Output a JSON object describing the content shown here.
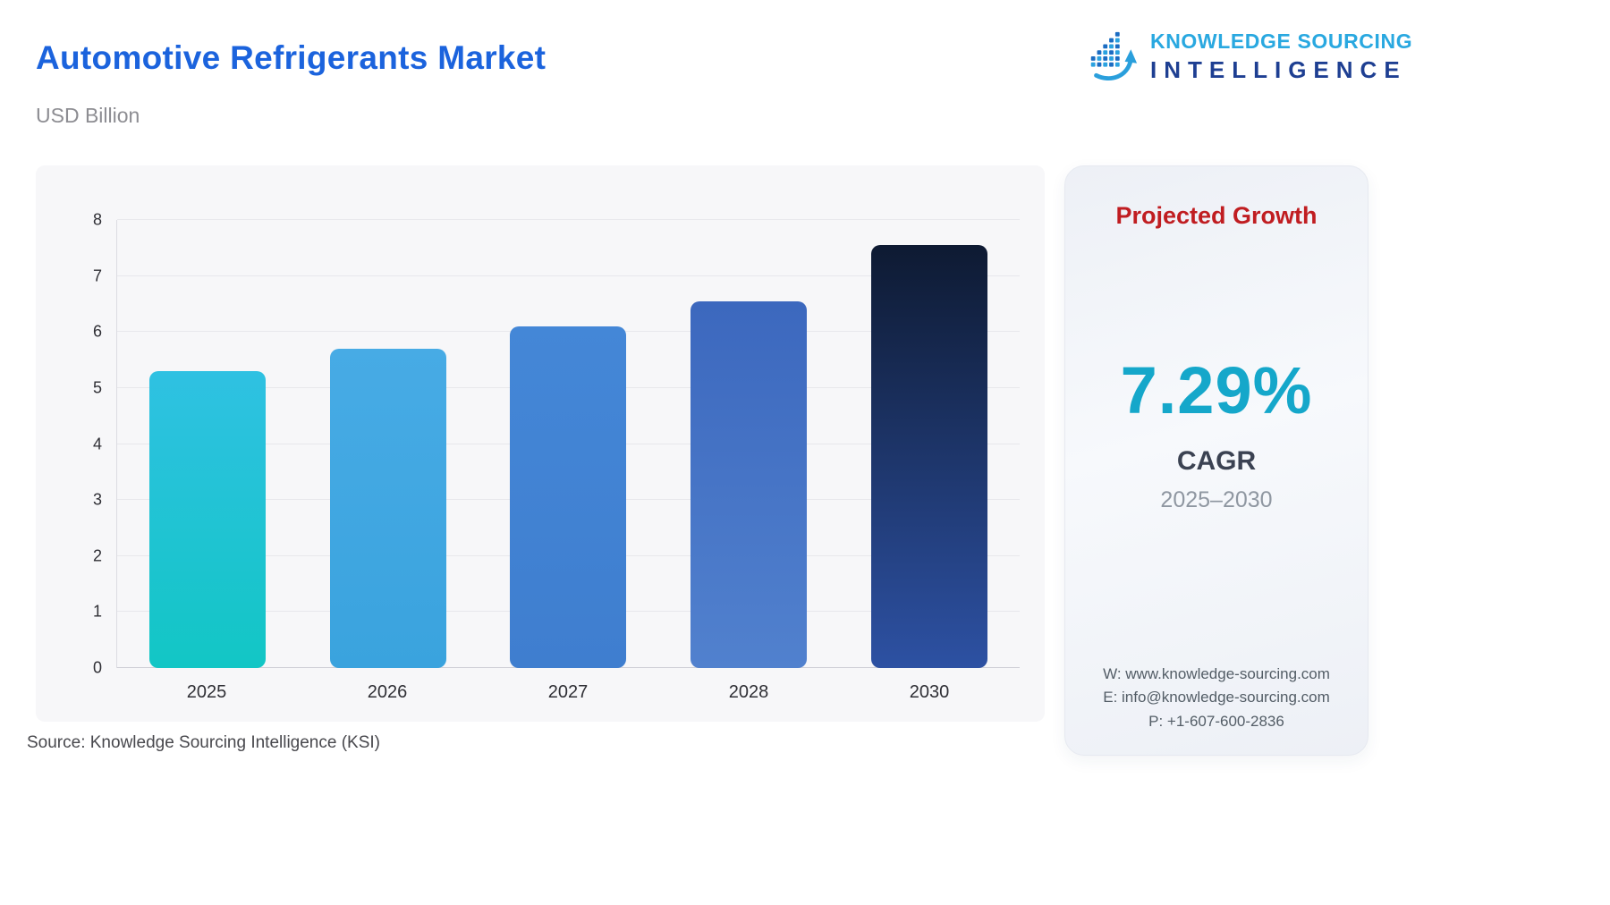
{
  "header": {
    "title": "Automotive Refrigerants Market",
    "subtitle": "USD Billion",
    "logo": {
      "line1": "KNOWLEDGE SOURCING",
      "line2": "INTELLIGENCE"
    }
  },
  "chart_data": {
    "type": "bar",
    "title": "Automotive Refrigerants Market",
    "xlabel": "",
    "ylabel": "USD Billion",
    "categories": [
      "2025",
      "2026",
      "2027",
      "2028",
      "2030"
    ],
    "values": [
      5.3,
      5.7,
      6.1,
      6.55,
      7.55
    ],
    "ylim": [
      0,
      8
    ],
    "yticks": [
      0,
      1,
      2,
      3,
      4,
      5,
      6,
      7,
      8
    ],
    "grid": true,
    "legend": false,
    "bar_colors": [
      [
        "#2fc1e2",
        "#12c6c5"
      ],
      [
        "#47abe5",
        "#3aa3de"
      ],
      [
        "#4487d7",
        "#3f7ecf"
      ],
      [
        "#3c68be",
        "#5181ce"
      ],
      [
        "#0e1a32",
        "#2d51a3"
      ]
    ]
  },
  "panel": {
    "heading": "Projected Growth",
    "value": "7.29%",
    "label": "CAGR",
    "period": "2025–2030",
    "contact": {
      "website": "W: www.knowledge-sourcing.com",
      "email": "E: info@knowledge-sourcing.com",
      "phone": "P: +1-607-600-2836"
    }
  },
  "footer": {
    "source": "Source: Knowledge Sourcing Intelligence (KSI)"
  },
  "colors": {
    "title_blue": "#1b63dd",
    "heading_red": "#c01d21",
    "value_teal": "#15a7ca",
    "logo_light_blue": "#29a8e0",
    "logo_dark_blue": "#1e3f92",
    "chart_panel_bg": "#f7f7f9"
  }
}
